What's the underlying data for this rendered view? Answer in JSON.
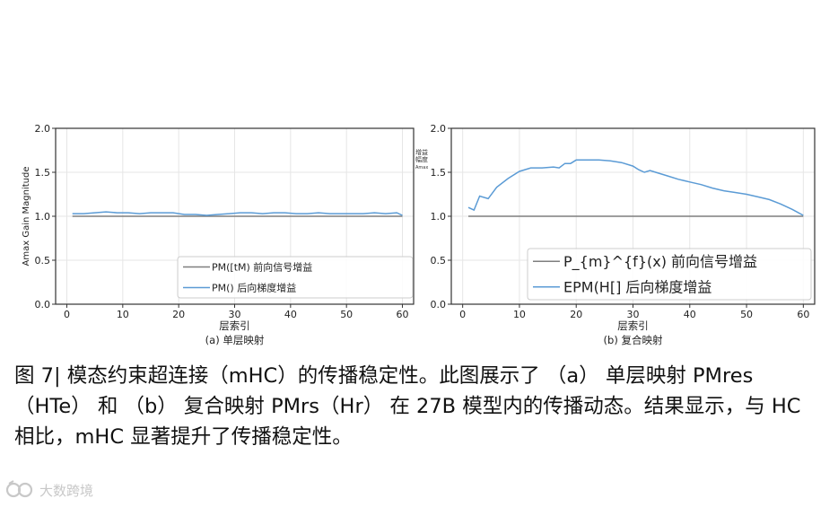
{
  "chart_data": [
    {
      "panel_id": "a",
      "type": "line",
      "ylabel": "Amax Gain Magnitude",
      "xlabel": "层索引",
      "subtitle": "(a)  单层映射",
      "xlim": [
        -2,
        62
      ],
      "ylim": [
        0.0,
        2.0
      ],
      "xticks": [
        0,
        10,
        20,
        30,
        40,
        50,
        60
      ],
      "yticks": [
        0.0,
        0.5,
        1.0,
        1.5,
        2.0
      ],
      "ytick_labels": [
        "0.0",
        "0.5",
        "1.0",
        "1.5",
        "2.0"
      ],
      "grid": true,
      "legend_position": "lower-right",
      "series": [
        {
          "name": "PM([tM) 前向信号增益",
          "color": "#7f7f7f",
          "x": [
            1,
            60
          ],
          "y": [
            1.0,
            1.0
          ]
        },
        {
          "name": "PM() 后向梯度增益",
          "color": "#5b9bd5",
          "x": [
            1,
            3,
            5,
            7,
            9,
            11,
            13,
            15,
            17,
            19,
            21,
            23,
            25,
            27,
            29,
            31,
            33,
            35,
            37,
            39,
            41,
            43,
            45,
            47,
            49,
            51,
            53,
            55,
            57,
            59,
            60
          ],
          "y": [
            1.03,
            1.03,
            1.04,
            1.05,
            1.04,
            1.04,
            1.03,
            1.04,
            1.04,
            1.04,
            1.02,
            1.02,
            1.01,
            1.02,
            1.03,
            1.04,
            1.04,
            1.03,
            1.04,
            1.04,
            1.03,
            1.03,
            1.04,
            1.03,
            1.03,
            1.03,
            1.03,
            1.04,
            1.03,
            1.04,
            1.01
          ]
        }
      ]
    },
    {
      "panel_id": "b",
      "type": "line",
      "xlabel": "层索引",
      "subtitle": "(b)  复合映射",
      "axis_note": "增益\n幅度\nAmax",
      "xlim": [
        -2,
        62
      ],
      "ylim": [
        0.0,
        2.0
      ],
      "xticks": [
        0,
        10,
        20,
        30,
        40,
        50,
        60
      ],
      "yticks": [
        0.0,
        0.5,
        1.0,
        1.5,
        2.0
      ],
      "ytick_labels": [
        "0.0",
        "0.5",
        "1.0",
        "1.5",
        "2.0"
      ],
      "grid": true,
      "legend_position": "lower-right",
      "series": [
        {
          "name": "P_{m}^{f}(x) 前向信号增益",
          "color": "#7f7f7f",
          "x": [
            1,
            60
          ],
          "y": [
            1.0,
            1.0
          ]
        },
        {
          "name": "EPM(H[] 后向梯度增益",
          "color": "#5b9bd5",
          "x": [
            1,
            2,
            3,
            4.5,
            6,
            8,
            10,
            12,
            14,
            16,
            17,
            18,
            19,
            20,
            22,
            24,
            26,
            28,
            30,
            31,
            32,
            33,
            34,
            36,
            38,
            40,
            42,
            44,
            46,
            48,
            50,
            52,
            54,
            56,
            58,
            60
          ],
          "y": [
            1.1,
            1.07,
            1.23,
            1.2,
            1.33,
            1.43,
            1.51,
            1.55,
            1.55,
            1.56,
            1.55,
            1.6,
            1.6,
            1.64,
            1.64,
            1.64,
            1.63,
            1.61,
            1.57,
            1.53,
            1.5,
            1.52,
            1.5,
            1.46,
            1.42,
            1.39,
            1.36,
            1.32,
            1.29,
            1.27,
            1.25,
            1.22,
            1.19,
            1.14,
            1.08,
            1.01
          ]
        }
      ]
    }
  ],
  "caption": "图 7| 模态约束超连接（mHC）的传播稳定性。此图展示了 （a） 单层映射 PMres（HTe） 和 （b） 复合映射 PMrs（Hr） 在 27B 模型内的传播动态。结果显示，与 HC 相比，mHC 显著提升了传播稳定性。",
  "watermark": {
    "text": "大数跨境",
    "icon": "watermark-logo-icon"
  }
}
